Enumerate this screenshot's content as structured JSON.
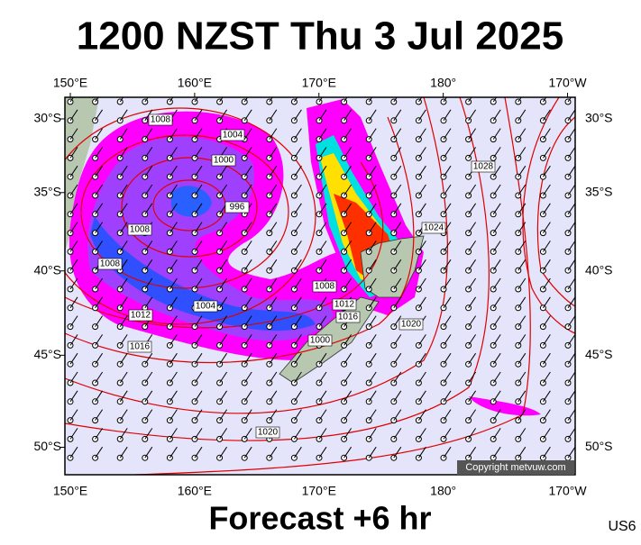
{
  "map": {
    "title": "1200 NZST Thu 3 Jul 2025",
    "subtitle": "Forecast +6 hr",
    "code": "US6",
    "credit": "Copyright metvuw.com",
    "lon_ticks": [
      {
        "value": 150,
        "label": "150°E"
      },
      {
        "value": 160,
        "label": "160°E"
      },
      {
        "value": 170,
        "label": "170°E"
      },
      {
        "value": 180,
        "label": "180°"
      },
      {
        "value": 190,
        "label": "170°W"
      }
    ],
    "lat_ticks": [
      {
        "value": -30,
        "label": "30°S"
      },
      {
        "value": -35,
        "label": "35°S"
      },
      {
        "value": -40,
        "label": "40°S"
      },
      {
        "value": -45,
        "label": "45°S"
      },
      {
        "value": -50,
        "label": "50°S"
      }
    ],
    "isobar_labels": [
      "1008",
      "1004",
      "1000",
      "996",
      "1008",
      "1008",
      "1012",
      "1016",
      "1004",
      "1008",
      "1012",
      "1016",
      "1000",
      "1020",
      "1024",
      "1028",
      "1020"
    ]
  }
}
